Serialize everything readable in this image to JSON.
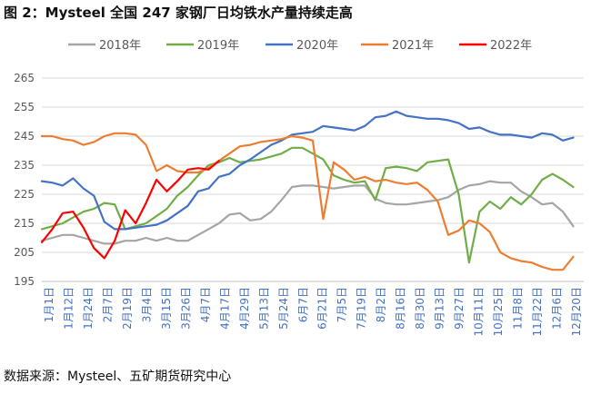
{
  "title": "图 2：Mysteel 全国 247 家钢厂日均铁水产量持续走高",
  "source": "数据来源：Mysteel、五矿期货研究中心",
  "chart_data": {
    "type": "line",
    "title": "图 2：Mysteel 全国 247 家钢厂日均铁水产量持续走高",
    "xlabel": "",
    "ylabel": "",
    "ylim": [
      195,
      265
    ],
    "yticks": [
      195,
      205,
      215,
      225,
      235,
      245,
      255,
      265
    ],
    "grid": true,
    "legend": "top",
    "x_ticks": [
      "1月1日",
      "1月12日",
      "1月24日",
      "2月7日",
      "2月19日",
      "3月4日",
      "3月15日",
      "3月26日",
      "4月7日",
      "4月17日",
      "4月29日",
      "5月13日",
      "5月24日",
      "6月7日",
      "6月21日",
      "7月5日",
      "7月19日",
      "8月2日",
      "8月16日",
      "8月30日",
      "9月13日",
      "9月27日",
      "10月11日",
      "10月25日",
      "11月8日",
      "11月22日",
      "12月6日",
      "12月20日"
    ],
    "x_range": [
      0,
      52
    ],
    "series": [
      {
        "name": "2018年",
        "color": "#a5a5a5",
        "x": [
          0,
          1,
          2,
          3,
          4,
          5,
          6,
          7,
          8,
          9,
          10,
          11,
          12,
          13,
          14,
          15,
          16,
          17,
          18,
          19,
          20,
          21,
          22,
          23,
          24,
          25,
          26,
          27,
          28,
          29,
          30,
          31,
          32,
          33,
          34,
          35,
          36,
          37,
          38,
          39,
          40,
          41,
          42,
          43,
          44,
          45,
          46,
          47,
          48,
          49,
          50,
          51
        ],
        "y": [
          209,
          210,
          211,
          211,
          210,
          209,
          208,
          208,
          209,
          209,
          210,
          209,
          210,
          209,
          209,
          211,
          213,
          215,
          218,
          218.5,
          216,
          216.5,
          219,
          223,
          227.5,
          228,
          228,
          227.5,
          227,
          227.5,
          228,
          228,
          223.5,
          222,
          221.5,
          221.5,
          222,
          222.5,
          223,
          224,
          226.5,
          228,
          228.5,
          229.5,
          229,
          229,
          226,
          224,
          221.5,
          222,
          219,
          214
        ]
      },
      {
        "name": "2019年",
        "color": "#70ad47",
        "x": [
          0,
          1,
          2,
          3,
          4,
          5,
          6,
          7,
          8,
          9,
          10,
          11,
          12,
          13,
          14,
          15,
          16,
          17,
          18,
          19,
          20,
          21,
          22,
          23,
          24,
          25,
          26,
          27,
          28,
          29,
          30,
          31,
          32,
          33,
          34,
          35,
          36,
          37,
          38,
          39,
          40,
          41,
          42,
          43,
          44,
          45,
          46,
          47,
          48,
          49,
          50,
          51
        ],
        "y": [
          213,
          214,
          215,
          217,
          219,
          220,
          222,
          221.5,
          213,
          214,
          215,
          217.5,
          220,
          224.5,
          227.5,
          231.5,
          235,
          236,
          237.5,
          236,
          236.5,
          237,
          238,
          239,
          241,
          241,
          239,
          237,
          231.5,
          230,
          229,
          229.5,
          223,
          234,
          234.5,
          234,
          233,
          236,
          236.5,
          237,
          225,
          201.5,
          219,
          222.5,
          220,
          224,
          221.5,
          225,
          230,
          232,
          230,
          227.5
        ]
      },
      {
        "name": "2020年",
        "color": "#4472c4",
        "x": [
          0,
          1,
          2,
          3,
          4,
          5,
          6,
          7,
          8,
          9,
          10,
          11,
          12,
          13,
          14,
          15,
          16,
          17,
          18,
          19,
          20,
          21,
          22,
          23,
          24,
          25,
          26,
          27,
          28,
          29,
          30,
          31,
          32,
          33,
          34,
          35,
          36,
          37,
          38,
          39,
          40,
          41,
          42,
          43,
          44,
          45,
          46,
          47,
          48,
          49,
          50,
          51
        ],
        "y": [
          229.5,
          229,
          228,
          230.5,
          227,
          224.5,
          215.5,
          213,
          213,
          213.5,
          214,
          214.5,
          216,
          218.5,
          221,
          226,
          227,
          231,
          232,
          235,
          237,
          239.5,
          242,
          243.5,
          245.5,
          246,
          246.5,
          248.5,
          248,
          247.5,
          247,
          248.5,
          251.5,
          252,
          253.5,
          252,
          251.5,
          251,
          251,
          250.5,
          249.5,
          247.5,
          248,
          246.5,
          245.5,
          245.5,
          245,
          244.5,
          246,
          245.5,
          243.5,
          244.5
        ]
      },
      {
        "name": "2021年",
        "color": "#ed7d31",
        "x": [
          0,
          1,
          2,
          3,
          4,
          5,
          6,
          7,
          8,
          9,
          10,
          11,
          12,
          13,
          14,
          15,
          16,
          17,
          18,
          19,
          20,
          21,
          22,
          23,
          24,
          25,
          26,
          27,
          28,
          29,
          30,
          31,
          32,
          33,
          34,
          35,
          36,
          37,
          38,
          39,
          40,
          41,
          42,
          43,
          44,
          45,
          46,
          47,
          48,
          49,
          50,
          51
        ],
        "y": [
          245,
          245,
          244,
          243.5,
          242,
          243,
          245,
          246,
          246,
          245.5,
          242,
          233,
          235,
          233,
          232.5,
          232.5,
          234,
          236.5,
          239,
          241.5,
          242,
          243,
          243.5,
          244,
          245,
          244.5,
          243.5,
          216.5,
          236,
          233.5,
          230,
          231,
          229.5,
          230,
          229,
          228.5,
          229,
          226.5,
          222.5,
          211,
          212.5,
          216,
          215,
          212,
          205,
          203,
          202,
          201.5,
          200,
          199,
          199,
          203.5
        ]
      },
      {
        "name": "2022年",
        "color": "#ff0000",
        "x": [
          0,
          1,
          2,
          3,
          4,
          5,
          6,
          7,
          8,
          9,
          10,
          11,
          12,
          13,
          14,
          15,
          16,
          17,
          18,
          19,
          20
        ],
        "y": [
          208.5,
          213,
          218.5,
          219,
          213.5,
          206.5,
          203,
          209,
          219.5,
          215,
          222,
          230,
          226,
          229.5,
          233.5,
          234,
          233.5,
          236.5,
          null,
          null,
          null
        ]
      }
    ]
  }
}
